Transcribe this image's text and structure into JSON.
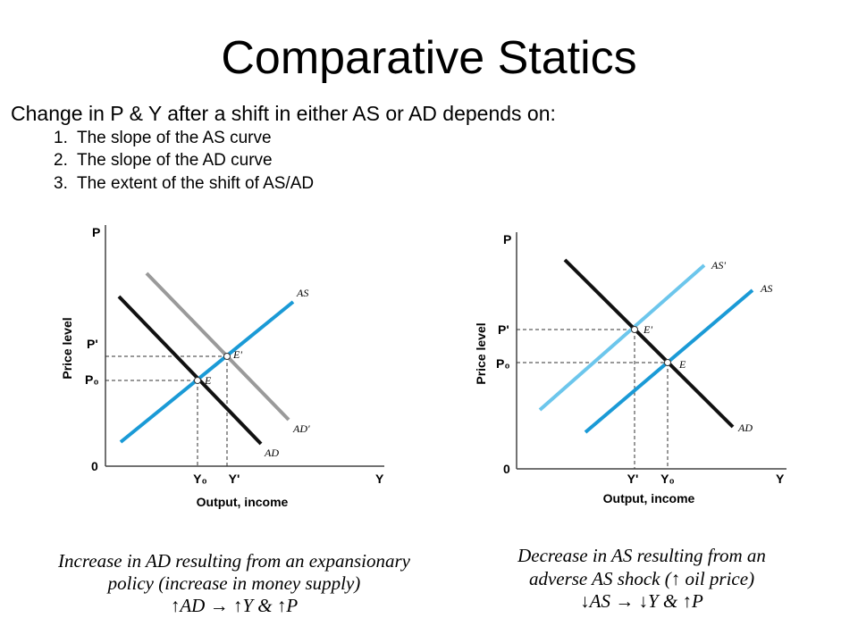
{
  "title": "Comparative Statics",
  "intro": "Change in P & Y after a shift in either AS or AD depends on:",
  "list": [
    {
      "marker": "1.",
      "text": "The slope of the AS curve"
    },
    {
      "marker": "2.",
      "text": "The slope of the AD curve"
    },
    {
      "marker": "3.",
      "text": "The extent of the shift of AS/AD"
    }
  ],
  "diagrams": [
    {
      "y_axis": "P",
      "x_axis": "Y",
      "origin": "0",
      "y_title": "Price level",
      "x_title": "Output, income",
      "p_labels": [
        "P'",
        "P₀"
      ],
      "y_labels": [
        "Y₀",
        "Y'"
      ],
      "curves": [
        "AS",
        "AD",
        "AD'"
      ],
      "points": [
        "E",
        "E'"
      ],
      "caption": [
        "Increase in AD resulting from an expansionary",
        "policy (increase in money supply)",
        "↑AD → ↑Y & ↑P"
      ]
    },
    {
      "y_axis": "P",
      "x_axis": "Y",
      "origin": "0",
      "y_title": "Price level",
      "x_title": "Output, income",
      "p_labels": [
        "P'",
        "P₀"
      ],
      "y_labels": [
        "Y'",
        "Y₀"
      ],
      "curves": [
        "AS",
        "AS'",
        "AD"
      ],
      "points": [
        "E",
        "E'"
      ],
      "caption": [
        "Decrease in AS resulting from an",
        "adverse AS shock (↑ oil price)",
        "↓AS → ↓Y & ↑P"
      ]
    }
  ]
}
